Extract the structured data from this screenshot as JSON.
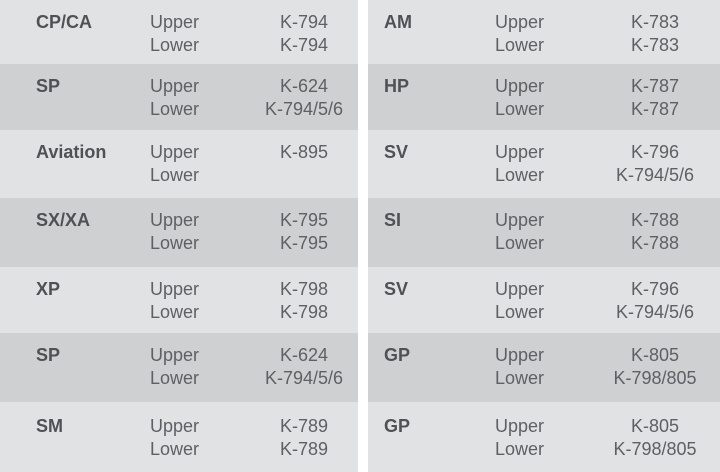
{
  "labels": {
    "upper": "Upper",
    "lower": "Lower"
  },
  "left_rows": [
    {
      "category": "CP/CA",
      "upper": "K-794",
      "lower": "K-794"
    },
    {
      "category": "SP",
      "upper": "K-624",
      "lower": "K-794/5/6"
    },
    {
      "category": "Aviation",
      "upper": "K-895",
      "lower": ""
    },
    {
      "category": "SX/XA",
      "upper": "K-795",
      "lower": "K-795"
    },
    {
      "category": "XP",
      "upper": "K-798",
      "lower": "K-798"
    },
    {
      "category": "SP",
      "upper": "K-624",
      "lower": "K-794/5/6"
    },
    {
      "category": "SM",
      "upper": "K-789",
      "lower": "K-789"
    }
  ],
  "right_rows": [
    {
      "category": "AM",
      "upper": "K-783",
      "lower": "K-783"
    },
    {
      "category": "HP",
      "upper": "K-787",
      "lower": "K-787"
    },
    {
      "category": "SV",
      "upper": "K-796",
      "lower": "K-794/5/6"
    },
    {
      "category": "SI",
      "upper": "K-788",
      "lower": "K-788"
    },
    {
      "category": "SV",
      "upper": "K-796",
      "lower": "K-794/5/6"
    },
    {
      "category": "GP",
      "upper": "K-805",
      "lower": "K-798/805"
    },
    {
      "category": "GP",
      "upper": "K-805",
      "lower": "K-798/805"
    }
  ],
  "colors": {
    "row_light": "#e1e2e4",
    "row_dark": "#cfd0d2",
    "gutter": "#ffffff",
    "category_text": "#4f5154",
    "value_text": "#5e6064"
  }
}
